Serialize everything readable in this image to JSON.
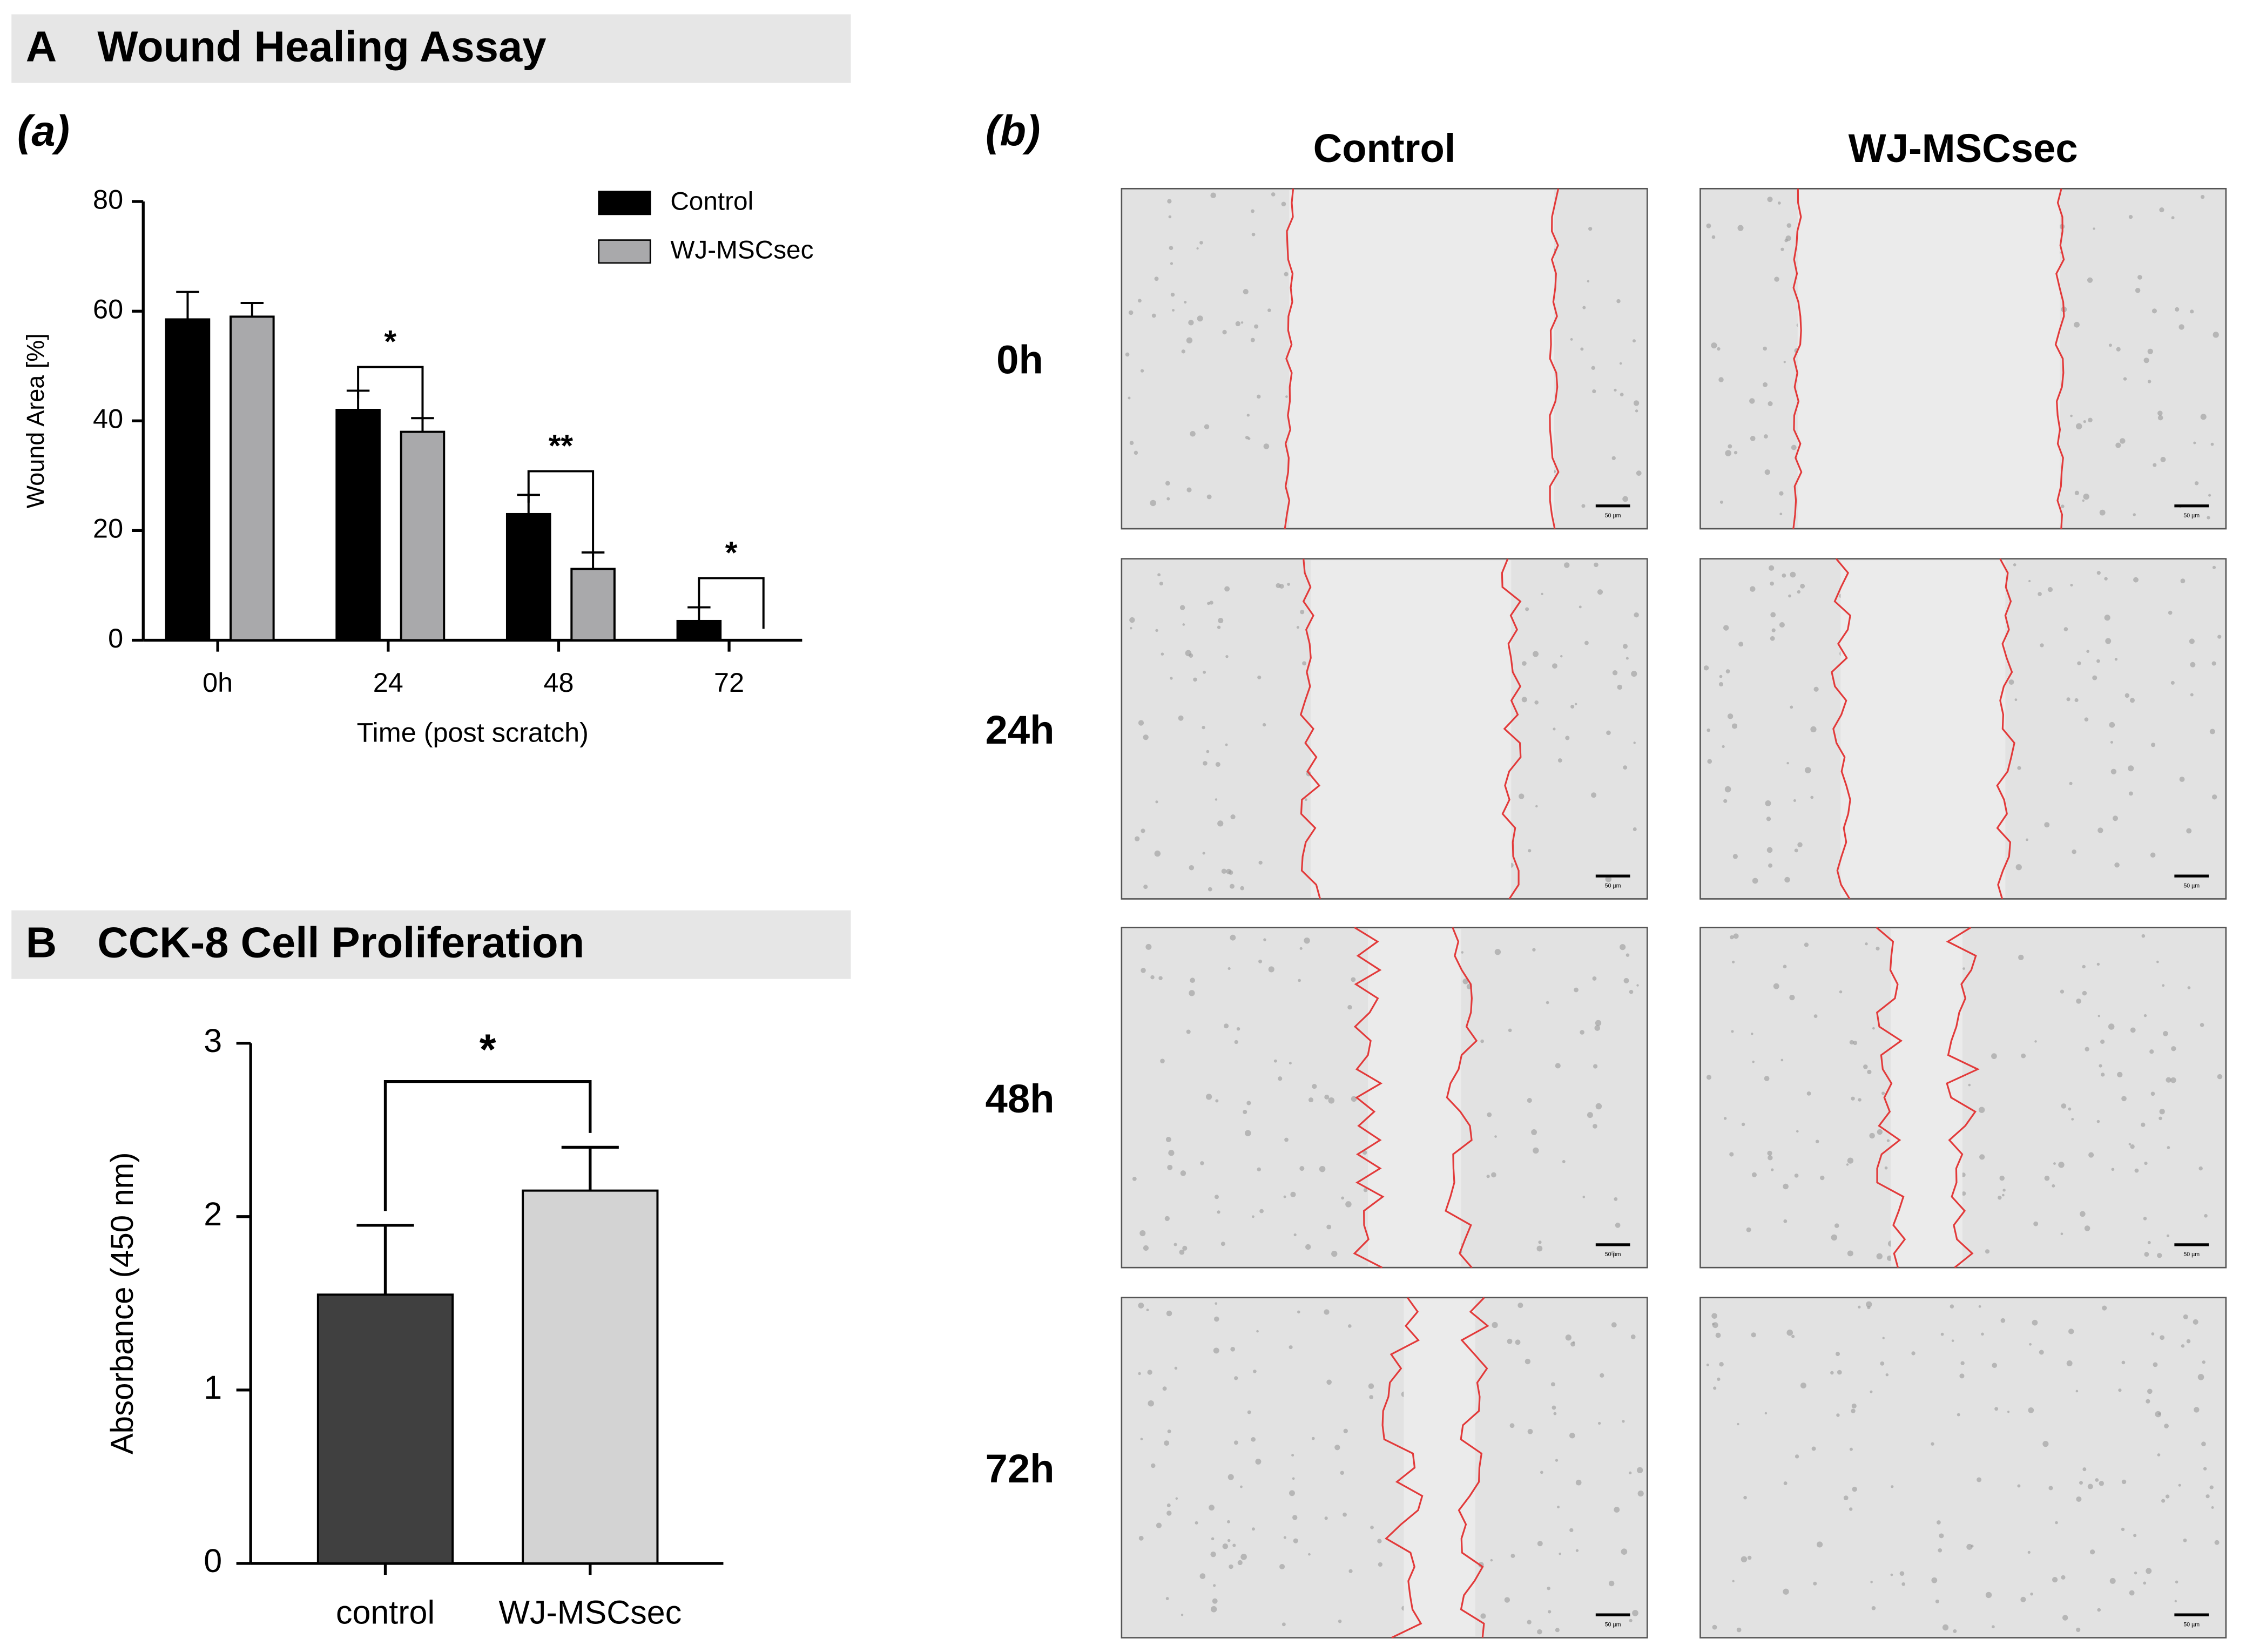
{
  "chart_data": [
    {
      "type": "bar",
      "panel": "A",
      "title": "Wound Healing Assay",
      "subtitle": "(a)",
      "categories": [
        "0h",
        "24",
        "48",
        "72"
      ],
      "xlabel": "Time (post scratch)",
      "ylabel": "Wound Area [%]",
      "ylim": [
        0,
        80
      ],
      "yticks": [
        0,
        20,
        40,
        60,
        80
      ],
      "series": [
        {
          "name": "Control",
          "color": "#000000",
          "values": [
            58.5,
            42,
            23,
            3.5
          ],
          "errors": [
            5,
            3.5,
            3.5,
            2.5
          ]
        },
        {
          "name": "WJ-MSCsec",
          "color": "#a9a9ab",
          "values": [
            59,
            38,
            13,
            0
          ],
          "errors": [
            2.5,
            2.5,
            3,
            0
          ]
        }
      ],
      "significance": [
        null,
        "*",
        "**",
        "*"
      ]
    },
    {
      "type": "bar",
      "panel": "B",
      "title": "CCK-8 Cell Proliferation",
      "categories": [
        "control",
        "WJ-MSCsec"
      ],
      "values": [
        1.55,
        2.15
      ],
      "errors": [
        0.4,
        0.25
      ],
      "colors": [
        "#404040",
        "#d3d3d3"
      ],
      "ylabel": "Absorbance (450 nm)",
      "ylim": [
        0,
        3
      ],
      "yticks": [
        0,
        1,
        2,
        3
      ],
      "significance": "*"
    }
  ],
  "micrographs": {
    "label": "(b)",
    "columns": [
      "Control",
      "WJ-MSCsec"
    ],
    "rows": [
      "0h",
      "24h",
      "48h",
      "72h"
    ],
    "scale_bar": "50 µm"
  }
}
